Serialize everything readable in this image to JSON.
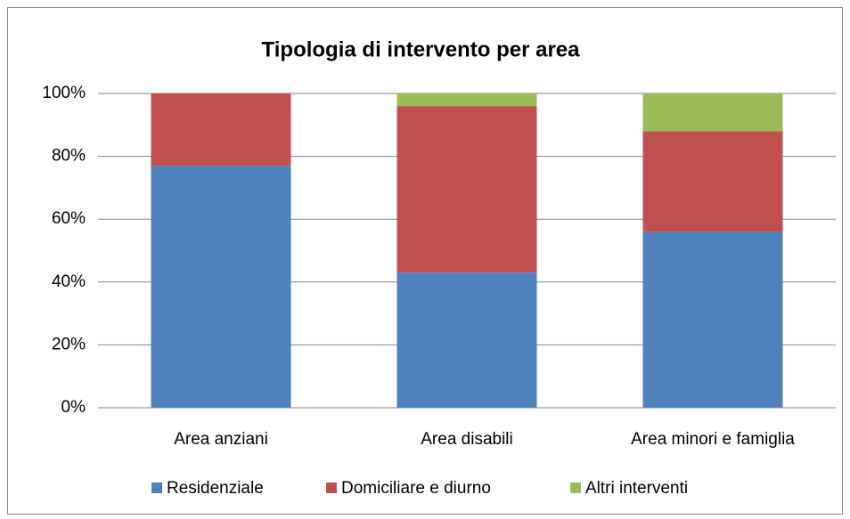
{
  "chart_data": {
    "type": "stacked_bar",
    "title": "Tipologia  di intervento per area",
    "categories": [
      "Area anziani",
      "Area disabili",
      "Area minori e famiglia"
    ],
    "series": [
      {
        "name": "Residenziale",
        "color": "#4f81bd",
        "values": [
          77,
          43,
          56
        ]
      },
      {
        "name": "Domiciliare e diurno",
        "color": "#c0504d",
        "values": [
          23,
          53,
          32
        ]
      },
      {
        "name": "Altri interventi",
        "color": "#9bbb59",
        "values": [
          0,
          4,
          12
        ]
      }
    ],
    "ylim": [
      0,
      100
    ],
    "yticks": [
      {
        "value": 0,
        "label": "0%"
      },
      {
        "value": 20,
        "label": "20%"
      },
      {
        "value": 40,
        "label": "40%"
      },
      {
        "value": 60,
        "label": "60%"
      },
      {
        "value": 80,
        "label": "80%"
      },
      {
        "value": 100,
        "label": "100%"
      }
    ],
    "grid": true,
    "legend": "bottom"
  }
}
